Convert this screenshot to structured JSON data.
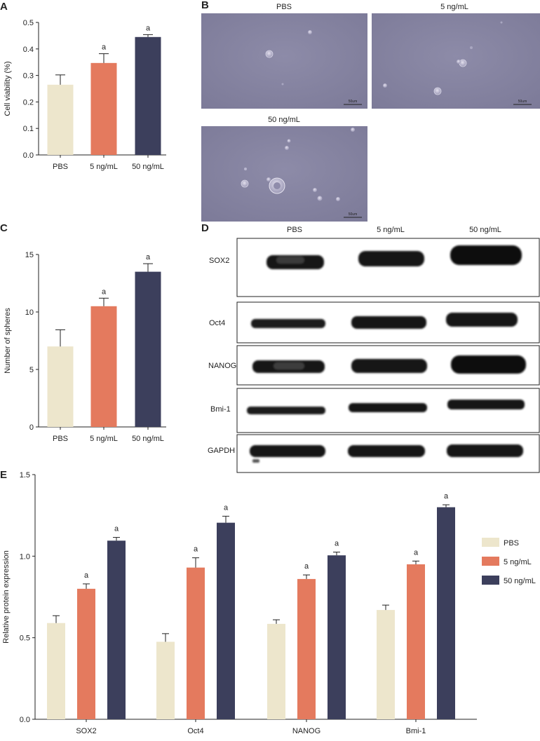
{
  "colors": {
    "pbs": "#ede6cc",
    "low": "#e47a5e",
    "high": "#3c3f5c"
  },
  "panel_letters": {
    "a": "A",
    "b": "B",
    "c": "C",
    "d": "D",
    "e": "E"
  },
  "chart_data": [
    {
      "panel": "A",
      "type": "bar",
      "categories": [
        "PBS",
        "5 ng/mL",
        "50 ng/mL"
      ],
      "values": [
        0.265,
        0.347,
        0.445
      ],
      "errors": [
        0.037,
        0.035,
        0.009
      ],
      "annotations": [
        "",
        "a",
        "a"
      ],
      "ylabel": "Cell viability (%)",
      "ylim": [
        0,
        0.5
      ],
      "yticks": [
        "0.0",
        "0.1",
        "0.2",
        "0.3",
        "0.4",
        "0.5"
      ]
    },
    {
      "panel": "C",
      "type": "bar",
      "categories": [
        "PBS",
        "5 ng/mL",
        "50 ng/mL"
      ],
      "values": [
        7.0,
        10.5,
        13.5
      ],
      "errors": [
        1.45,
        0.7,
        0.7
      ],
      "annotations": [
        "",
        "a",
        "a"
      ],
      "ylabel": "Number of spheres",
      "ylim": [
        0,
        15
      ],
      "yticks": [
        "0",
        "5",
        "10",
        "15"
      ]
    },
    {
      "panel": "E",
      "type": "bar",
      "categories": [
        "SOX2",
        "Oct4",
        "NANOG",
        "Bmi-1"
      ],
      "series": [
        {
          "name": "PBS",
          "values": [
            0.59,
            0.475,
            0.585,
            0.67
          ],
          "errors": [
            0.045,
            0.05,
            0.025,
            0.03
          ]
        },
        {
          "name": "5 ng/mL",
          "values": [
            0.8,
            0.93,
            0.86,
            0.95
          ],
          "errors": [
            0.03,
            0.06,
            0.025,
            0.02
          ]
        },
        {
          "name": "50 ng/mL",
          "values": [
            1.095,
            1.205,
            1.005,
            1.3
          ],
          "errors": [
            0.02,
            0.04,
            0.02,
            0.015
          ]
        }
      ],
      "annotations": [
        [
          "",
          "a",
          "a"
        ],
        [
          "",
          "a",
          "a"
        ],
        [
          "",
          "a",
          "a"
        ],
        [
          "",
          "a",
          "a"
        ]
      ],
      "ylabel": "Relative protein expression",
      "ylim": [
        0,
        1.5
      ],
      "yticks": [
        "0.0",
        "0.5",
        "1.0",
        "1.5"
      ],
      "legend": {
        "placement": "right",
        "entries": [
          "PBS",
          "5 ng/mL",
          "50 ng/mL"
        ]
      }
    }
  ],
  "micrographs": {
    "titles": [
      "PBS",
      "5 ng/mL",
      "50 ng/mL"
    ],
    "scale_label": "50um"
  },
  "western_blot": {
    "columns": [
      "PBS",
      "5 ng/mL",
      "50 ng/mL"
    ],
    "rows": [
      "SOX2",
      "Oct4",
      "NANOG",
      "Bmi-1",
      "GAPDH"
    ]
  }
}
